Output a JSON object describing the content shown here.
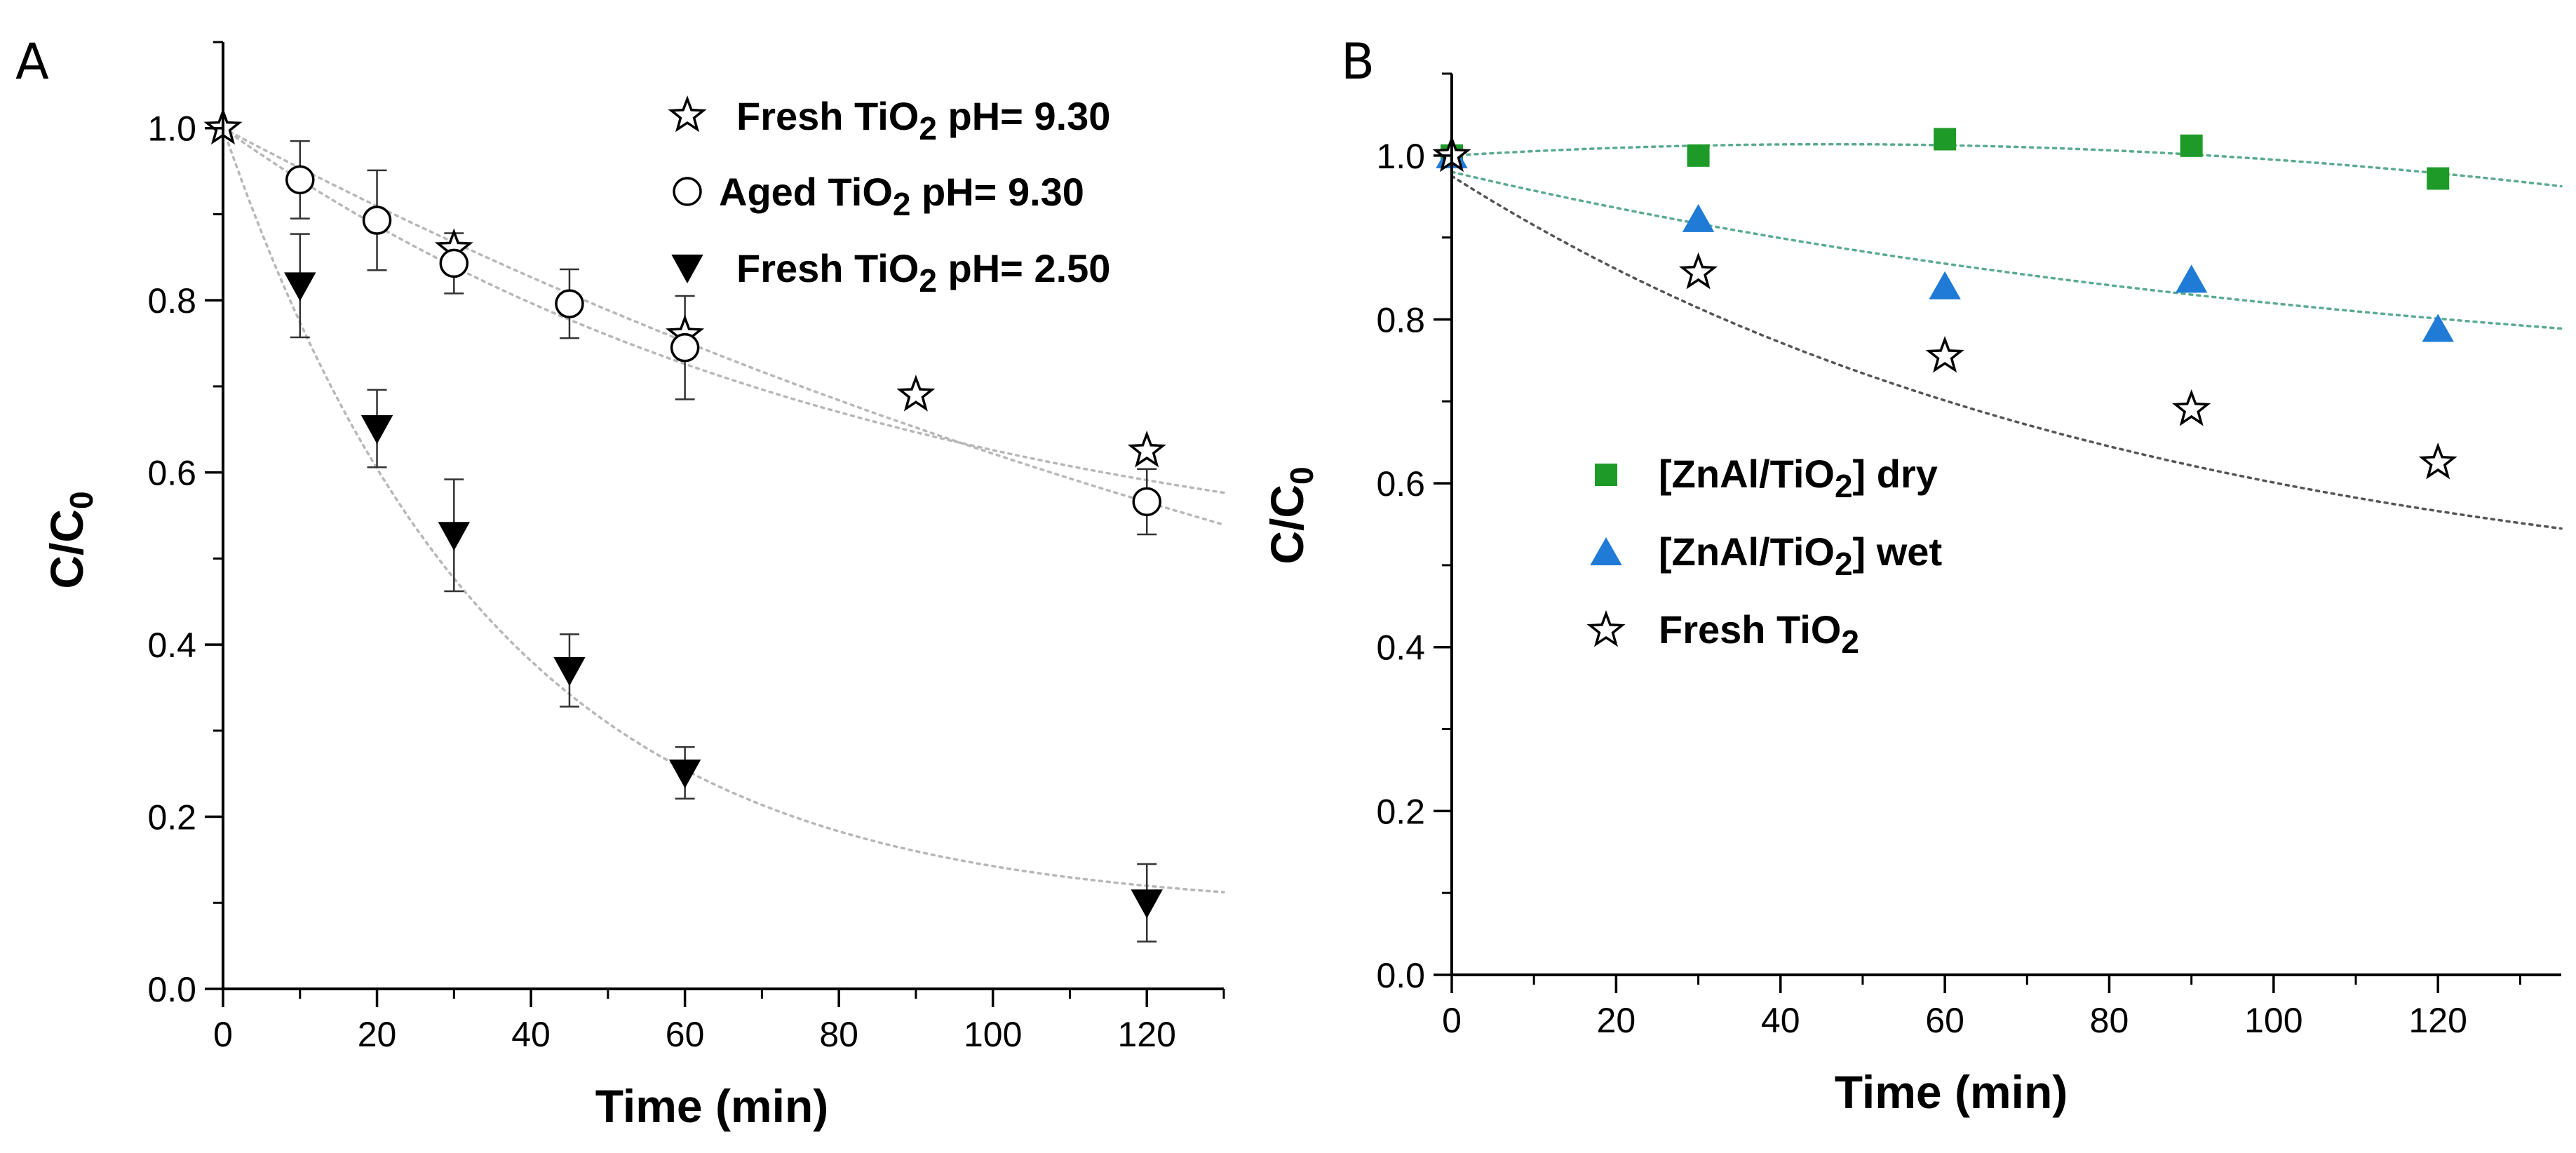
{
  "figure": {
    "panel_a_label": "A",
    "panel_b_label": "B"
  },
  "chart_data": [
    {
      "type": "scatter",
      "panel": "A",
      "title": "",
      "xlabel": "Time (min)",
      "ylabel": "C/C0",
      "xlim": [
        0,
        130
      ],
      "ylim": [
        0,
        1.1
      ],
      "xticks": [
        0,
        20,
        40,
        60,
        80,
        100,
        120
      ],
      "xtick_labels": [
        "0",
        "20",
        "40",
        "60",
        "80",
        "100",
        "120"
      ],
      "yticks": [
        0,
        0.2,
        0.4,
        0.6,
        0.8,
        1.0
      ],
      "ytick_labels": [
        "0.0",
        "0.2",
        "0.4",
        "0.6",
        "0.8",
        "1.0"
      ],
      "grid": false,
      "legend_position": "top-right",
      "series": [
        {
          "name": "Fresh TiO2 pH= 9.30",
          "legend_main": "Fresh TiO",
          "legend_sub": "2",
          "legend_rest": " pH= 9.30",
          "marker": "star-open",
          "color": "#000000",
          "x": [
            0,
            30,
            60,
            90,
            120
          ],
          "y": [
            1.0,
            0.86,
            0.76,
            0.69,
            0.625
          ],
          "err": [],
          "fit": {
            "type": "exp",
            "a": 0.54,
            "k": 0.0118,
            "c": 0.46,
            "color": "#b8b8b8"
          }
        },
        {
          "name": "Aged TiO2 pH= 9.30",
          "legend_main": "Aged TiO",
          "legend_sub": "2",
          "legend_rest": " pH= 9.30",
          "marker": "circle-open",
          "color": "#000000",
          "x": [
            10,
            20,
            30,
            45,
            60,
            120
          ],
          "y": [
            0.94,
            0.893,
            0.843,
            0.796,
            0.745,
            0.566
          ],
          "err": [
            0.045,
            0.058,
            0.035,
            0.04,
            0.06,
            0.038
          ],
          "fit": {
            "type": "exp",
            "a": 1.0,
            "k": 0.00475,
            "c": 0.0,
            "color": "#b8b8b8"
          }
        },
        {
          "name": "Fresh TiO2 pH= 2.50",
          "legend_main": "Fresh TiO",
          "legend_sub": "2",
          "legend_rest": " pH= 2.50",
          "marker": "triangle-down-filled",
          "color": "#000000",
          "x": [
            10,
            20,
            30,
            45,
            60,
            120
          ],
          "y": [
            0.817,
            0.651,
            0.527,
            0.37,
            0.251,
            0.1
          ],
          "err": [
            0.06,
            0.045,
            0.065,
            0.042,
            0.03,
            0.045
          ],
          "fit": {
            "type": "exp",
            "a": 0.91,
            "k": 0.0285,
            "c": 0.09,
            "color": "#b8b8b8"
          }
        }
      ]
    },
    {
      "type": "scatter",
      "panel": "B",
      "title": "",
      "xlabel": "Time (min)",
      "ylabel": "C/C0",
      "xlim": [
        0,
        135
      ],
      "ylim": [
        0,
        1.1
      ],
      "xticks": [
        0,
        20,
        40,
        60,
        80,
        100,
        120
      ],
      "xtick_labels": [
        "0",
        "20",
        "40",
        "60",
        "80",
        "100",
        "120"
      ],
      "yticks": [
        0,
        0.2,
        0.4,
        0.6,
        0.8,
        1.0
      ],
      "ytick_labels": [
        "0.0",
        "0.2",
        "0.4",
        "0.6",
        "0.8",
        "1.0"
      ],
      "grid": false,
      "legend_position": "center-left",
      "series": [
        {
          "name": "[ZnAl/TiO2] dry",
          "legend_main": "[ZnAl/TiO",
          "legend_sub": "2",
          "legend_rest": "] dry",
          "marker": "square-filled",
          "color": "#1e9a28",
          "x": [
            0,
            30,
            60,
            90,
            120
          ],
          "y": [
            1.0,
            1.0,
            1.02,
            1.012,
            0.972
          ],
          "err": [],
          "fit": {
            "type": "poly2",
            "c0": 1.0,
            "c1": 0.0006,
            "c2": -6.5e-06,
            "color": "#5aab8c"
          }
        },
        {
          "name": "[ZnAl/TiO2] wet",
          "legend_main": "[ZnAl/TiO",
          "legend_sub": "2",
          "legend_rest": "] wet",
          "marker": "triangle-up-filled",
          "color": "#1f7bd6",
          "x": [
            0,
            30,
            60,
            90,
            120
          ],
          "y": [
            1.0,
            0.922,
            0.84,
            0.848,
            0.788
          ],
          "err": [],
          "fit": {
            "type": "exp",
            "a": 0.28,
            "k": 0.0085,
            "c": 0.7,
            "color": "#5aab8c"
          }
        },
        {
          "name": "Fresh TiO2",
          "legend_main": "Fresh TiO",
          "legend_sub": "2",
          "legend_rest": "",
          "marker": "star-open",
          "color": "#000000",
          "x": [
            0,
            30,
            60,
            90,
            120
          ],
          "y": [
            1.0,
            0.857,
            0.755,
            0.69,
            0.625
          ],
          "err": [],
          "fit": {
            "type": "exp",
            "a": 0.54,
            "k": 0.0118,
            "c": 0.435,
            "color": "#555555"
          }
        }
      ]
    }
  ]
}
